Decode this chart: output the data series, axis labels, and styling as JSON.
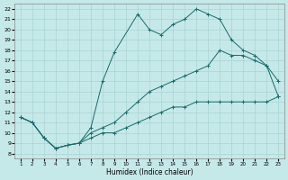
{
  "xlabel": "Humidex (Indice chaleur)",
  "xlim": [
    0.5,
    23.5
  ],
  "ylim": [
    7.5,
    22.5
  ],
  "xticks": [
    1,
    2,
    3,
    4,
    5,
    6,
    7,
    8,
    9,
    10,
    11,
    12,
    13,
    14,
    15,
    16,
    17,
    18,
    19,
    20,
    21,
    22,
    23
  ],
  "yticks": [
    8,
    9,
    10,
    11,
    12,
    13,
    14,
    15,
    16,
    17,
    18,
    19,
    20,
    21,
    22
  ],
  "bg_color": "#c5e8e8",
  "grid_color": "#aad4d4",
  "line_color": "#1a6b6b",
  "line1_x": [
    1,
    2,
    3,
    4,
    5,
    6,
    7,
    8,
    9,
    11,
    12,
    13,
    14,
    15,
    16,
    17,
    18,
    19,
    20,
    21,
    22,
    23
  ],
  "line1_y": [
    11.5,
    11.0,
    9.5,
    8.5,
    8.8,
    9.0,
    10.5,
    15.0,
    17.8,
    21.5,
    20.0,
    19.5,
    20.5,
    21.0,
    22.0,
    21.5,
    21.0,
    19.0,
    18.0,
    17.5,
    16.5,
    15.0
  ],
  "line2_x": [
    1,
    2,
    3,
    4,
    5,
    6,
    7,
    8,
    9,
    10,
    11,
    12,
    13,
    14,
    15,
    16,
    17,
    18,
    19,
    20,
    21,
    22,
    23
  ],
  "line2_y": [
    11.5,
    11.0,
    9.5,
    8.5,
    8.8,
    9.0,
    10.0,
    10.5,
    11.0,
    12.0,
    13.0,
    14.0,
    14.5,
    15.0,
    15.5,
    16.0,
    16.5,
    18.0,
    17.5,
    17.5,
    17.0,
    16.5,
    13.5
  ],
  "line3_x": [
    1,
    2,
    3,
    4,
    5,
    6,
    7,
    8,
    9,
    10,
    11,
    12,
    13,
    14,
    15,
    16,
    17,
    18,
    19,
    20,
    21,
    22,
    23
  ],
  "line3_y": [
    11.5,
    11.0,
    9.5,
    8.5,
    8.8,
    9.0,
    9.5,
    10.0,
    10.0,
    10.5,
    11.0,
    11.5,
    12.0,
    12.5,
    12.5,
    13.0,
    13.0,
    13.0,
    13.0,
    13.0,
    13.0,
    13.0,
    13.5
  ]
}
